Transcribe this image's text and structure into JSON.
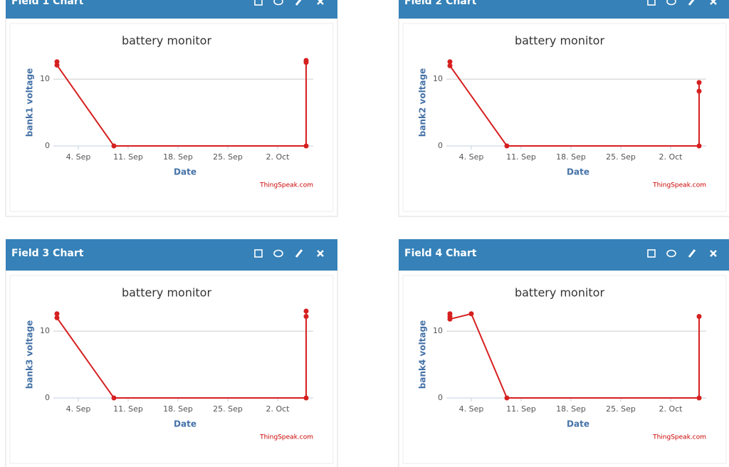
{
  "chart_data": [
    {
      "type": "line",
      "header": "Field 1 Chart",
      "title": "battery monitor",
      "y_label": "bank1 voltage",
      "x_label": "Date",
      "credit": "ThingSpeak.com",
      "x": [
        "1. Sep",
        "1. Sep",
        "9. Sep",
        "6. Oct",
        "6. Oct",
        "6. Oct"
      ],
      "values": [
        12.6,
        12.1,
        0,
        0,
        12.5,
        12.8
      ],
      "color": "#d62020",
      "xlim": [
        "1. Sep",
        "7. Oct"
      ],
      "xticks": [
        "4. Sep",
        "11. Sep",
        "18. Sep",
        "25. Sep",
        "2. Oct"
      ],
      "ylim": [
        0,
        13
      ],
      "yticks": [
        0,
        10
      ],
      "grid": true
    },
    {
      "type": "line",
      "header": "Field 2 Chart",
      "title": "battery monitor",
      "y_label": "bank2 voltage",
      "x_label": "Date",
      "credit": "ThingSpeak.com",
      "x": [
        "1. Sep",
        "1. Sep",
        "9. Sep",
        "6. Oct",
        "6. Oct",
        "6. Oct"
      ],
      "values": [
        12.6,
        12.0,
        0,
        0,
        8.2,
        9.5
      ],
      "color": "#d62020",
      "xlim": [
        "1. Sep",
        "7. Oct"
      ],
      "xticks": [
        "4. Sep",
        "11. Sep",
        "18. Sep",
        "25. Sep",
        "2. Oct"
      ],
      "ylim": [
        0,
        13
      ],
      "yticks": [
        0,
        10
      ],
      "grid": true
    },
    {
      "type": "line",
      "header": "Field 3 Chart",
      "title": "battery monitor",
      "y_label": "bank3 voltage",
      "x_label": "Date",
      "credit": "ThingSpeak.com",
      "x": [
        "1. Sep",
        "1. Sep",
        "9. Sep",
        "6. Oct",
        "6. Oct",
        "6. Oct"
      ],
      "values": [
        12.6,
        12.0,
        0,
        0,
        12.2,
        13.0
      ],
      "color": "#d62020",
      "xlim": [
        "1. Sep",
        "7. Oct"
      ],
      "xticks": [
        "4. Sep",
        "11. Sep",
        "18. Sep",
        "25. Sep",
        "2. Oct"
      ],
      "ylim": [
        0,
        13
      ],
      "yticks": [
        0,
        10
      ],
      "grid": true
    },
    {
      "type": "line",
      "header": "Field 4 Chart",
      "title": "battery monitor",
      "y_label": "bank4 voltage",
      "x_label": "Date",
      "credit": "ThingSpeak.com",
      "x": [
        "1. Sep",
        "1. Sep",
        "1. Sep",
        "4. Sep",
        "9. Sep",
        "6. Oct",
        "6. Oct"
      ],
      "values": [
        12.6,
        12.2,
        11.8,
        12.6,
        0,
        0,
        12.2
      ],
      "color": "#d62020",
      "xlim": [
        "1. Sep",
        "7. Oct"
      ],
      "xticks": [
        "4. Sep",
        "11. Sep",
        "18. Sep",
        "25. Sep",
        "2. Oct"
      ],
      "ylim": [
        0,
        13
      ],
      "yticks": [
        0,
        10
      ],
      "grid": true
    }
  ]
}
